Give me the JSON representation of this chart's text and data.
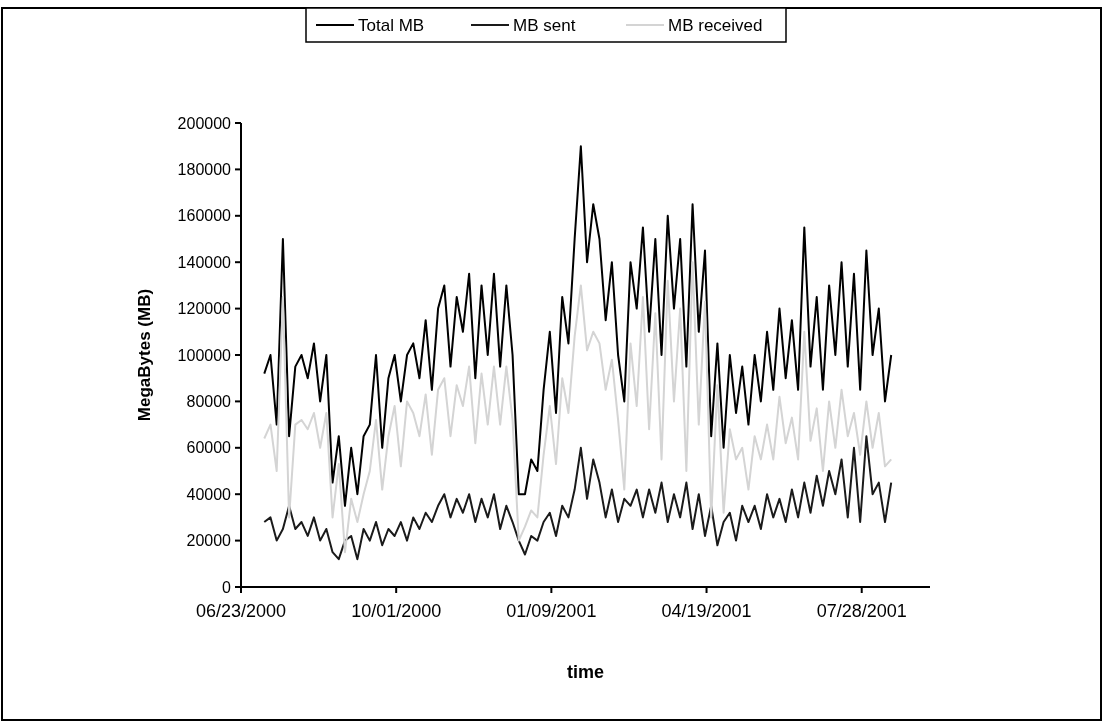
{
  "chart_data": {
    "type": "line",
    "xlabel": "time",
    "ylabel": "MegaBytes (MB)",
    "x": [
      "2000-07-08",
      "2000-07-12",
      "2000-07-16",
      "2000-07-20",
      "2000-07-24",
      "2000-07-28",
      "2000-08-01",
      "2000-08-05",
      "2000-08-09",
      "2000-08-13",
      "2000-08-17",
      "2000-08-21",
      "2000-08-25",
      "2000-08-29",
      "2000-09-02",
      "2000-09-06",
      "2000-09-10",
      "2000-09-14",
      "2000-09-18",
      "2000-09-22",
      "2000-09-26",
      "2000-09-30",
      "2000-10-04",
      "2000-10-08",
      "2000-10-12",
      "2000-10-16",
      "2000-10-20",
      "2000-10-24",
      "2000-10-28",
      "2000-11-01",
      "2000-11-05",
      "2000-11-09",
      "2000-11-13",
      "2000-11-17",
      "2000-11-21",
      "2000-11-25",
      "2000-11-29",
      "2000-12-03",
      "2000-12-07",
      "2000-12-11",
      "2000-12-15",
      "2000-12-19",
      "2000-12-23",
      "2000-12-27",
      "2000-12-31",
      "2001-01-04",
      "2001-01-08",
      "2001-01-12",
      "2001-01-16",
      "2001-01-20",
      "2001-01-24",
      "2001-01-28",
      "2001-02-01",
      "2001-02-05",
      "2001-02-09",
      "2001-02-13",
      "2001-02-17",
      "2001-02-21",
      "2001-02-25",
      "2001-03-01",
      "2001-03-05",
      "2001-03-09",
      "2001-03-13",
      "2001-03-17",
      "2001-03-21",
      "2001-03-25",
      "2001-03-29",
      "2001-04-02",
      "2001-04-06",
      "2001-04-10",
      "2001-04-14",
      "2001-04-18",
      "2001-04-22",
      "2001-04-26",
      "2001-04-30",
      "2001-05-04",
      "2001-05-08",
      "2001-05-12",
      "2001-05-16",
      "2001-05-20",
      "2001-05-24",
      "2001-05-28",
      "2001-06-01",
      "2001-06-05",
      "2001-06-09",
      "2001-06-13",
      "2001-06-17",
      "2001-06-21",
      "2001-06-25",
      "2001-06-29",
      "2001-07-03",
      "2001-07-07",
      "2001-07-11",
      "2001-07-15",
      "2001-07-19",
      "2001-07-23",
      "2001-07-27",
      "2001-07-31",
      "2001-08-04",
      "2001-08-08",
      "2001-08-12",
      "2001-08-16"
    ],
    "series": [
      {
        "name": "Total MB",
        "color": "#000000",
        "values": [
          92000,
          100000,
          70000,
          150000,
          65000,
          95000,
          100000,
          90000,
          105000,
          80000,
          100000,
          45000,
          65000,
          35000,
          60000,
          40000,
          65000,
          70000,
          100000,
          60000,
          90000,
          100000,
          80000,
          100000,
          105000,
          90000,
          115000,
          85000,
          120000,
          130000,
          95000,
          125000,
          110000,
          135000,
          90000,
          130000,
          100000,
          135000,
          95000,
          130000,
          100000,
          40000,
          40000,
          55000,
          50000,
          85000,
          110000,
          75000,
          125000,
          105000,
          150000,
          190000,
          140000,
          165000,
          150000,
          115000,
          140000,
          100000,
          80000,
          140000,
          120000,
          155000,
          110000,
          150000,
          100000,
          160000,
          120000,
          150000,
          95000,
          165000,
          110000,
          145000,
          65000,
          105000,
          60000,
          100000,
          75000,
          95000,
          70000,
          100000,
          80000,
          110000,
          85000,
          120000,
          90000,
          115000,
          85000,
          155000,
          95000,
          125000,
          85000,
          130000,
          100000,
          140000,
          95000,
          135000,
          85000,
          145000,
          100000,
          120000,
          80000,
          100000
        ]
      },
      {
        "name": "MB sent",
        "color": "#1a1a1a",
        "values": [
          28000,
          30000,
          20000,
          25000,
          35000,
          25000,
          28000,
          22000,
          30000,
          20000,
          25000,
          15000,
          12000,
          20000,
          22000,
          12000,
          25000,
          20000,
          28000,
          18000,
          25000,
          22000,
          28000,
          20000,
          30000,
          25000,
          32000,
          28000,
          35000,
          40000,
          30000,
          38000,
          32000,
          40000,
          28000,
          38000,
          30000,
          40000,
          25000,
          35000,
          28000,
          20000,
          14000,
          22000,
          20000,
          28000,
          32000,
          22000,
          35000,
          30000,
          42000,
          60000,
          38000,
          55000,
          45000,
          30000,
          42000,
          28000,
          38000,
          35000,
          42000,
          30000,
          42000,
          32000,
          45000,
          28000,
          40000,
          30000,
          45000,
          25000,
          40000,
          22000,
          35000,
          18000,
          28000,
          32000,
          20000,
          35000,
          28000,
          35000,
          25000,
          40000,
          30000,
          38000,
          28000,
          42000,
          30000,
          45000,
          32000,
          48000,
          35000,
          50000,
          40000,
          55000,
          30000,
          60000,
          28000,
          65000,
          40000,
          45000,
          28000,
          45000
        ]
      },
      {
        "name": "MB received",
        "color": "#d4d4d4",
        "values": [
          64000,
          70000,
          50000,
          125000,
          30000,
          70000,
          72000,
          68000,
          75000,
          60000,
          75000,
          30000,
          53000,
          15000,
          38000,
          28000,
          40000,
          50000,
          72000,
          42000,
          65000,
          78000,
          52000,
          80000,
          75000,
          65000,
          83000,
          57000,
          85000,
          90000,
          65000,
          87000,
          78000,
          95000,
          62000,
          92000,
          70000,
          95000,
          70000,
          95000,
          72000,
          20000,
          26000,
          33000,
          30000,
          57000,
          78000,
          53000,
          90000,
          75000,
          108000,
          130000,
          102000,
          110000,
          105000,
          85000,
          98000,
          72000,
          42000,
          105000,
          78000,
          125000,
          68000,
          118000,
          55000,
          132000,
          80000,
          120000,
          50000,
          140000,
          70000,
          123000,
          30000,
          87000,
          32000,
          68000,
          55000,
          60000,
          42000,
          65000,
          55000,
          70000,
          55000,
          82000,
          62000,
          73000,
          55000,
          110000,
          63000,
          77000,
          50000,
          80000,
          60000,
          85000,
          65000,
          75000,
          57000,
          80000,
          60000,
          75000,
          52000,
          55000
        ]
      }
    ],
    "xlim": [
      "2000-06-23",
      "2001-09-10"
    ],
    "xticks": [
      {
        "value": "2000-06-23",
        "label": "06/23/2000"
      },
      {
        "value": "2000-10-01",
        "label": "10/01/2000"
      },
      {
        "value": "2001-01-09",
        "label": "01/09/2001"
      },
      {
        "value": "2001-04-19",
        "label": "04/19/2001"
      },
      {
        "value": "2001-07-28",
        "label": "07/28/2001"
      }
    ],
    "ylim": [
      0,
      200000
    ],
    "yticks": [
      0,
      20000,
      40000,
      60000,
      80000,
      100000,
      120000,
      140000,
      160000,
      180000,
      200000
    ],
    "grid": false,
    "legend": "top",
    "marker": "none",
    "line_style": "solid"
  }
}
